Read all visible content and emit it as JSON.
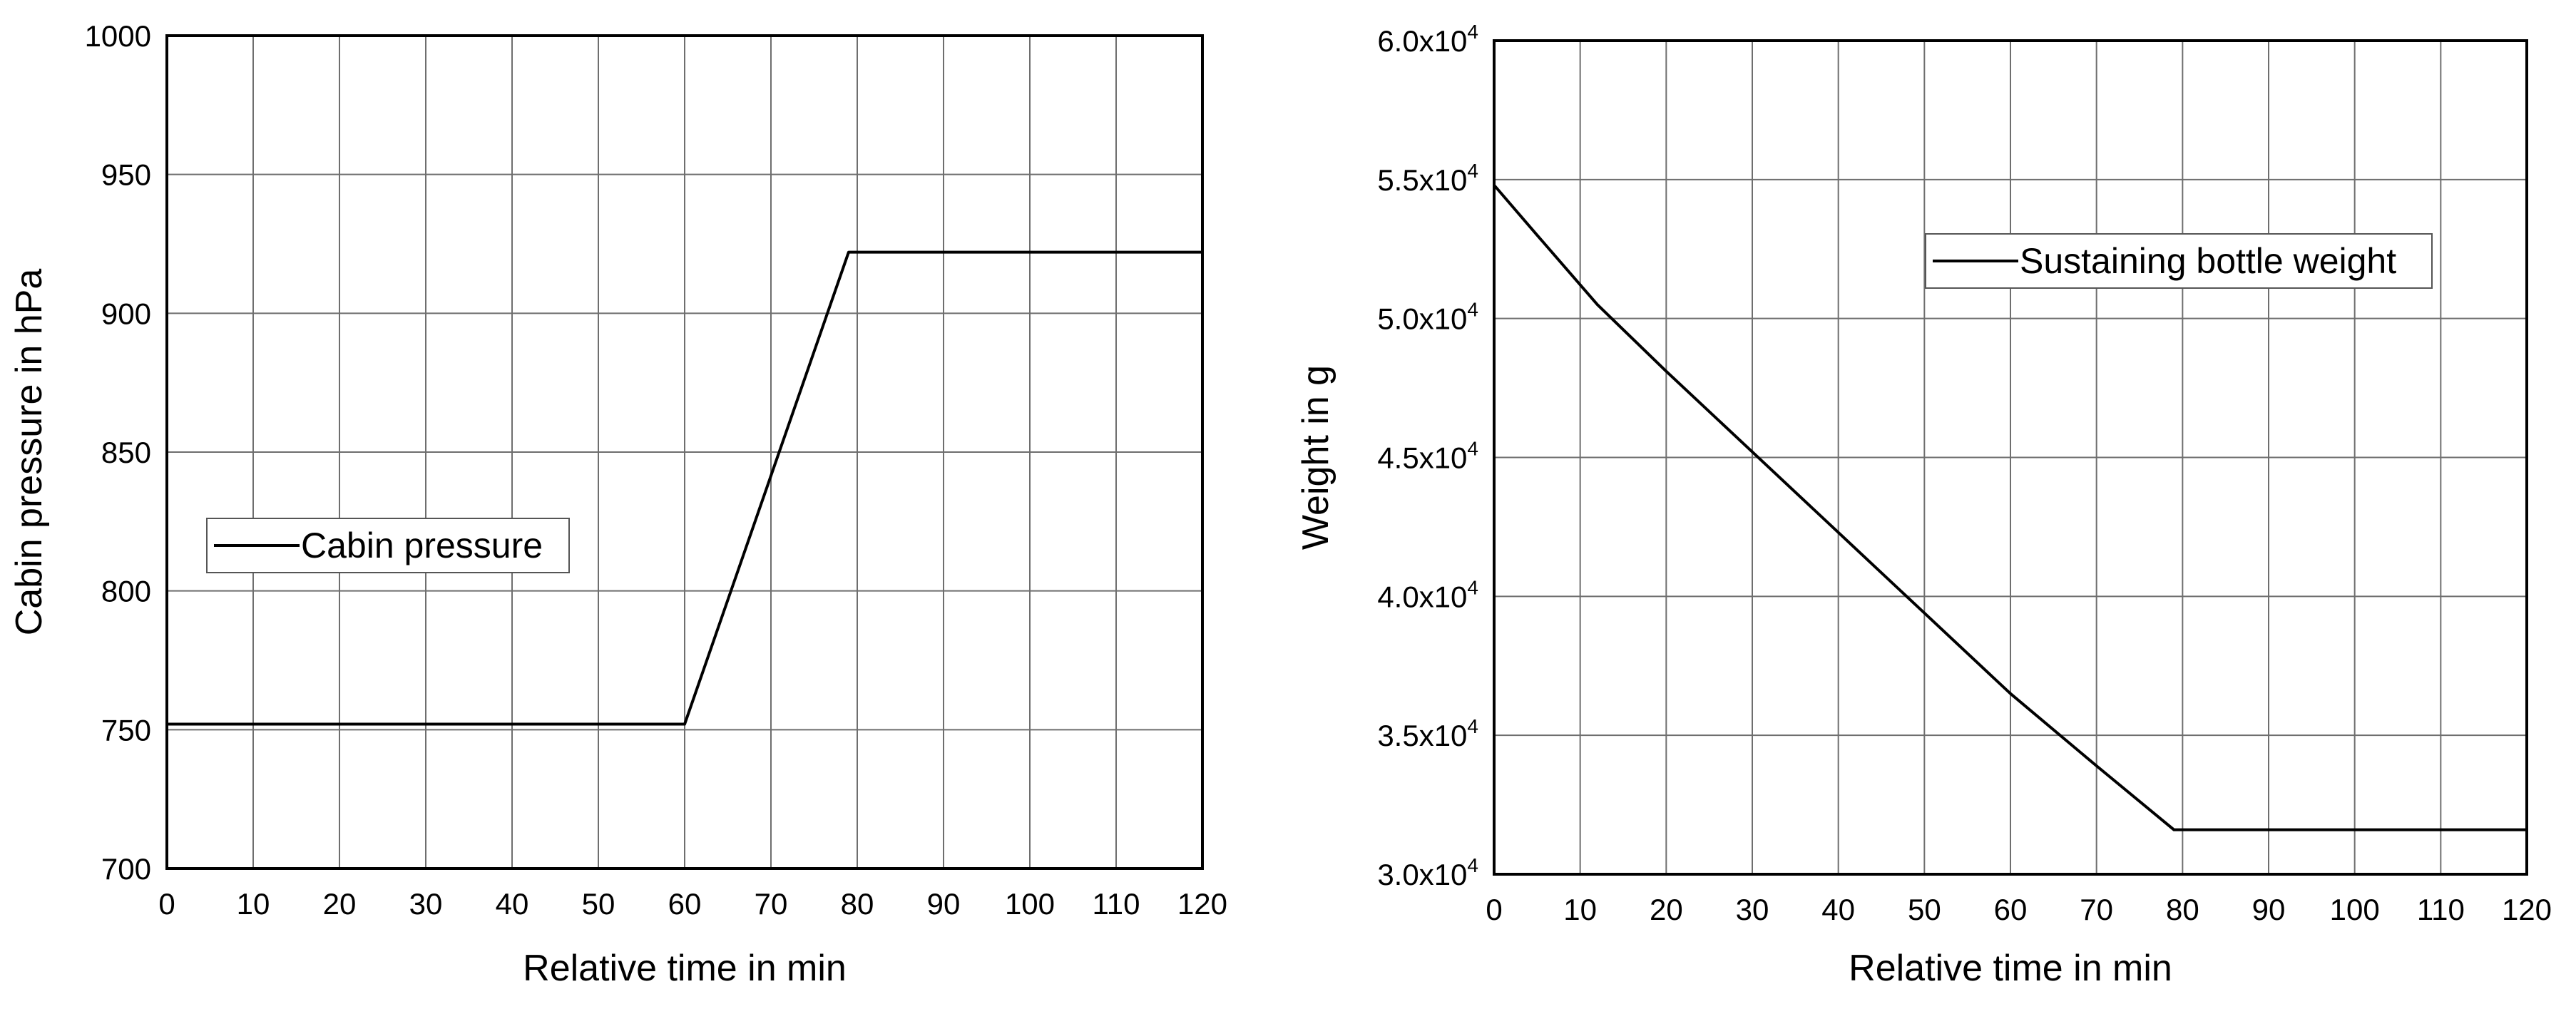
{
  "chart_data": [
    {
      "type": "line",
      "title": "",
      "xlabel": "Relative time in min",
      "ylabel": "Cabin pressure in hPa",
      "xlim": [
        0,
        120
      ],
      "ylim": [
        700,
        1000
      ],
      "x_ticks": [
        "0",
        "10",
        "20",
        "30",
        "40",
        "50",
        "60",
        "70",
        "80",
        "90",
        "100",
        "110",
        "120"
      ],
      "y_ticks": [
        "700",
        "750",
        "800",
        "850",
        "900",
        "950",
        "1000"
      ],
      "grid": true,
      "legend_position": "middle-left",
      "series": [
        {
          "name": "Cabin pressure",
          "color": "#000000",
          "points": [
            [
              0,
              752
            ],
            [
              60,
              752
            ],
            [
              79,
              922
            ],
            [
              120,
              922
            ]
          ]
        }
      ]
    },
    {
      "type": "line",
      "title": "",
      "xlabel": "Relative time in min",
      "ylabel": "Weight in g",
      "xlim": [
        0,
        120
      ],
      "ylim": [
        30000,
        60000
      ],
      "x_ticks": [
        "0",
        "10",
        "20",
        "30",
        "40",
        "50",
        "60",
        "70",
        "80",
        "90",
        "100",
        "110",
        "120"
      ],
      "y_ticks": [
        {
          "mantissa": "3.0x10",
          "exp": "4"
        },
        {
          "mantissa": "3.5x10",
          "exp": "4"
        },
        {
          "mantissa": "4.0x10",
          "exp": "4"
        },
        {
          "mantissa": "4.5x10",
          "exp": "4"
        },
        {
          "mantissa": "5.0x10",
          "exp": "4"
        },
        {
          "mantissa": "5.5x10",
          "exp": "4"
        },
        {
          "mantissa": "6.0x10",
          "exp": "4"
        }
      ],
      "grid": true,
      "legend_position": "top-right",
      "series": [
        {
          "name": "Sustaining bottle weight",
          "color": "#000000",
          "points": [
            [
              0,
              54800
            ],
            [
              5,
              53000
            ],
            [
              12,
              50500
            ],
            [
              20,
              48100
            ],
            [
              30,
              45200
            ],
            [
              40,
              42300
            ],
            [
              50,
              39400
            ],
            [
              60,
              36500
            ],
            [
              70,
              33900
            ],
            [
              79,
              31600
            ],
            [
              100,
              31600
            ],
            [
              120,
              31600
            ]
          ]
        }
      ]
    }
  ]
}
